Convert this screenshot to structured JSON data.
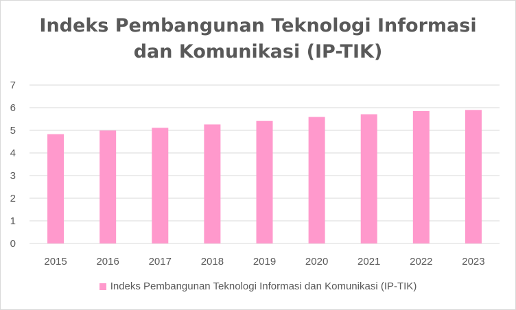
{
  "chart_data": {
    "type": "bar",
    "title_lines": [
      "Indeks Pembangunan Teknologi Informasi",
      "dan Komunikasi (IP-TIK)"
    ],
    "categories": [
      "2015",
      "2016",
      "2017",
      "2018",
      "2019",
      "2020",
      "2021",
      "2022",
      "2023"
    ],
    "series": [
      {
        "name": "Indeks Pembangunan Teknologi Informasi dan Komunikasi (IP-TIK)",
        "values": [
          4.83,
          4.99,
          5.11,
          5.26,
          5.42,
          5.59,
          5.71,
          5.85,
          5.9
        ],
        "color": "#ff99cc"
      }
    ],
    "ylim": [
      0,
      7
    ],
    "yticks": [
      "0",
      "1",
      "2",
      "3",
      "4",
      "5",
      "6",
      "7"
    ],
    "grid": true,
    "legend_position": "bottom"
  }
}
